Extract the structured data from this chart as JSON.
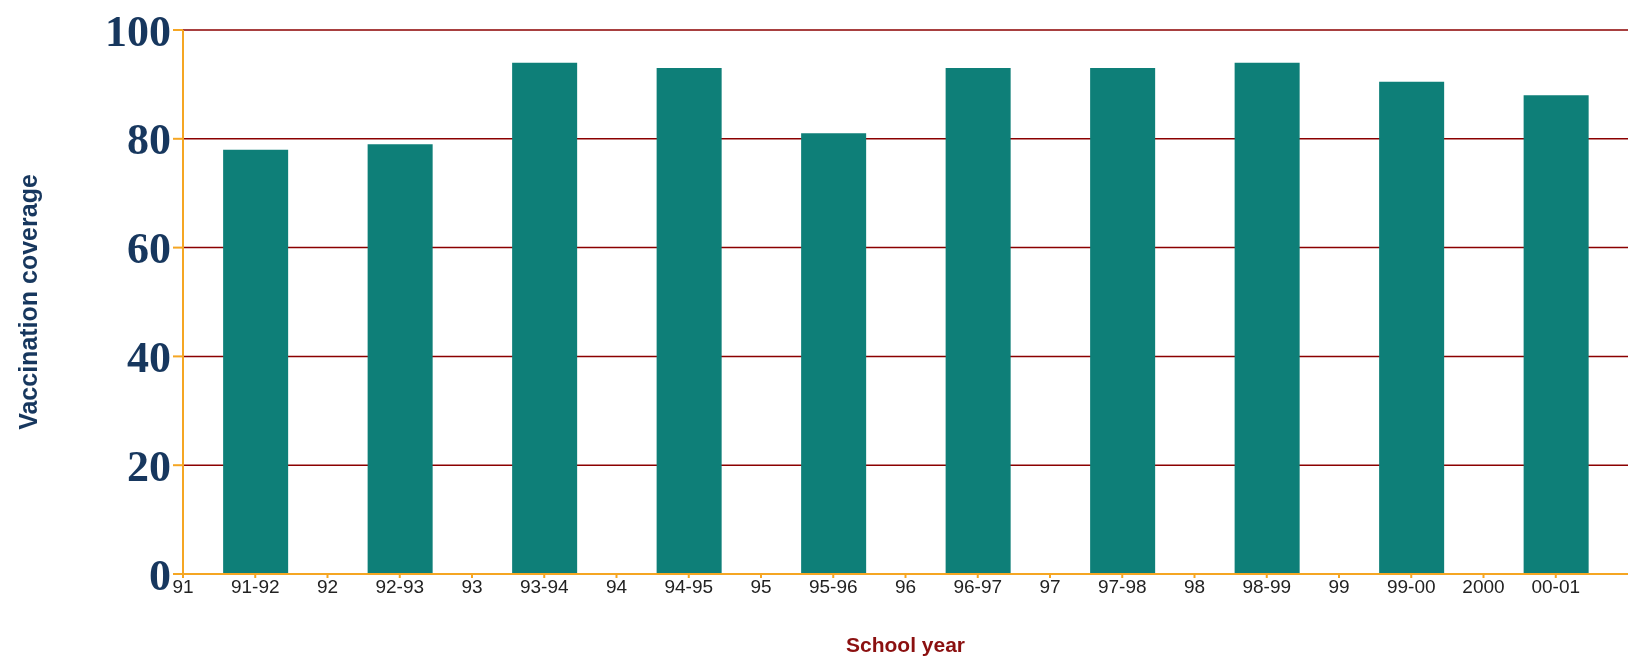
{
  "chart_data": {
    "type": "bar",
    "xlabel": "School year",
    "ylabel": "Vaccination coverage",
    "categories": [
      "91",
      "91-92",
      "92",
      "92-93",
      "93",
      "93-94",
      "94",
      "94-95",
      "95",
      "95-96",
      "96",
      "96-97",
      "97",
      "97-98",
      "98",
      "98-99",
      "99",
      "99-00",
      "2000",
      "00-01"
    ],
    "values": [
      null,
      78,
      null,
      79,
      null,
      94,
      null,
      93,
      null,
      81,
      null,
      93,
      null,
      93,
      null,
      94,
      null,
      90.5,
      null,
      88
    ],
    "color": "#0e7f78",
    "ylim": [
      0,
      100
    ],
    "yticks": [
      0,
      20,
      40,
      60,
      80,
      100
    ],
    "grid": "y",
    "legend": false
  }
}
